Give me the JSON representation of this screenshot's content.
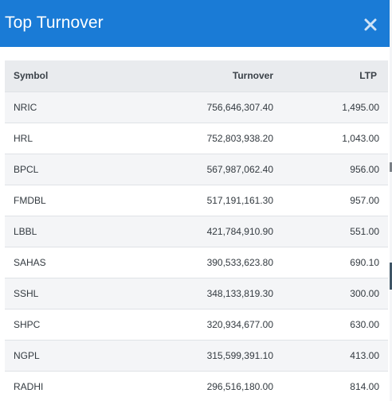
{
  "modal": {
    "title": "Top Turnover",
    "close_icon": "close-icon"
  },
  "table": {
    "headers": {
      "symbol": "Symbol",
      "turnover": "Turnover",
      "ltp": "LTP"
    },
    "rows": [
      {
        "symbol": "NRIC",
        "turnover": "756,646,307.40",
        "ltp": "1,495.00"
      },
      {
        "symbol": "HRL",
        "turnover": "752,803,938.20",
        "ltp": "1,043.00"
      },
      {
        "symbol": "BPCL",
        "turnover": "567,987,062.40",
        "ltp": "956.00"
      },
      {
        "symbol": "FMDBL",
        "turnover": "517,191,161.30",
        "ltp": "957.00"
      },
      {
        "symbol": "LBBL",
        "turnover": "421,784,910.90",
        "ltp": "551.00"
      },
      {
        "symbol": "SAHAS",
        "turnover": "390,533,623.80",
        "ltp": "690.10"
      },
      {
        "symbol": "SSHL",
        "turnover": "348,133,819.30",
        "ltp": "300.00"
      },
      {
        "symbol": "SHPC",
        "turnover": "320,934,677.00",
        "ltp": "630.00"
      },
      {
        "symbol": "NGPL",
        "turnover": "315,599,391.10",
        "ltp": "413.00"
      },
      {
        "symbol": "RADHI",
        "turnover": "296,516,180.00",
        "ltp": "814.00"
      }
    ]
  },
  "colors": {
    "header_bg": "#1a7bd6",
    "table_head_bg": "#e9ebee",
    "row_alt_bg": "#f4f5f7"
  }
}
